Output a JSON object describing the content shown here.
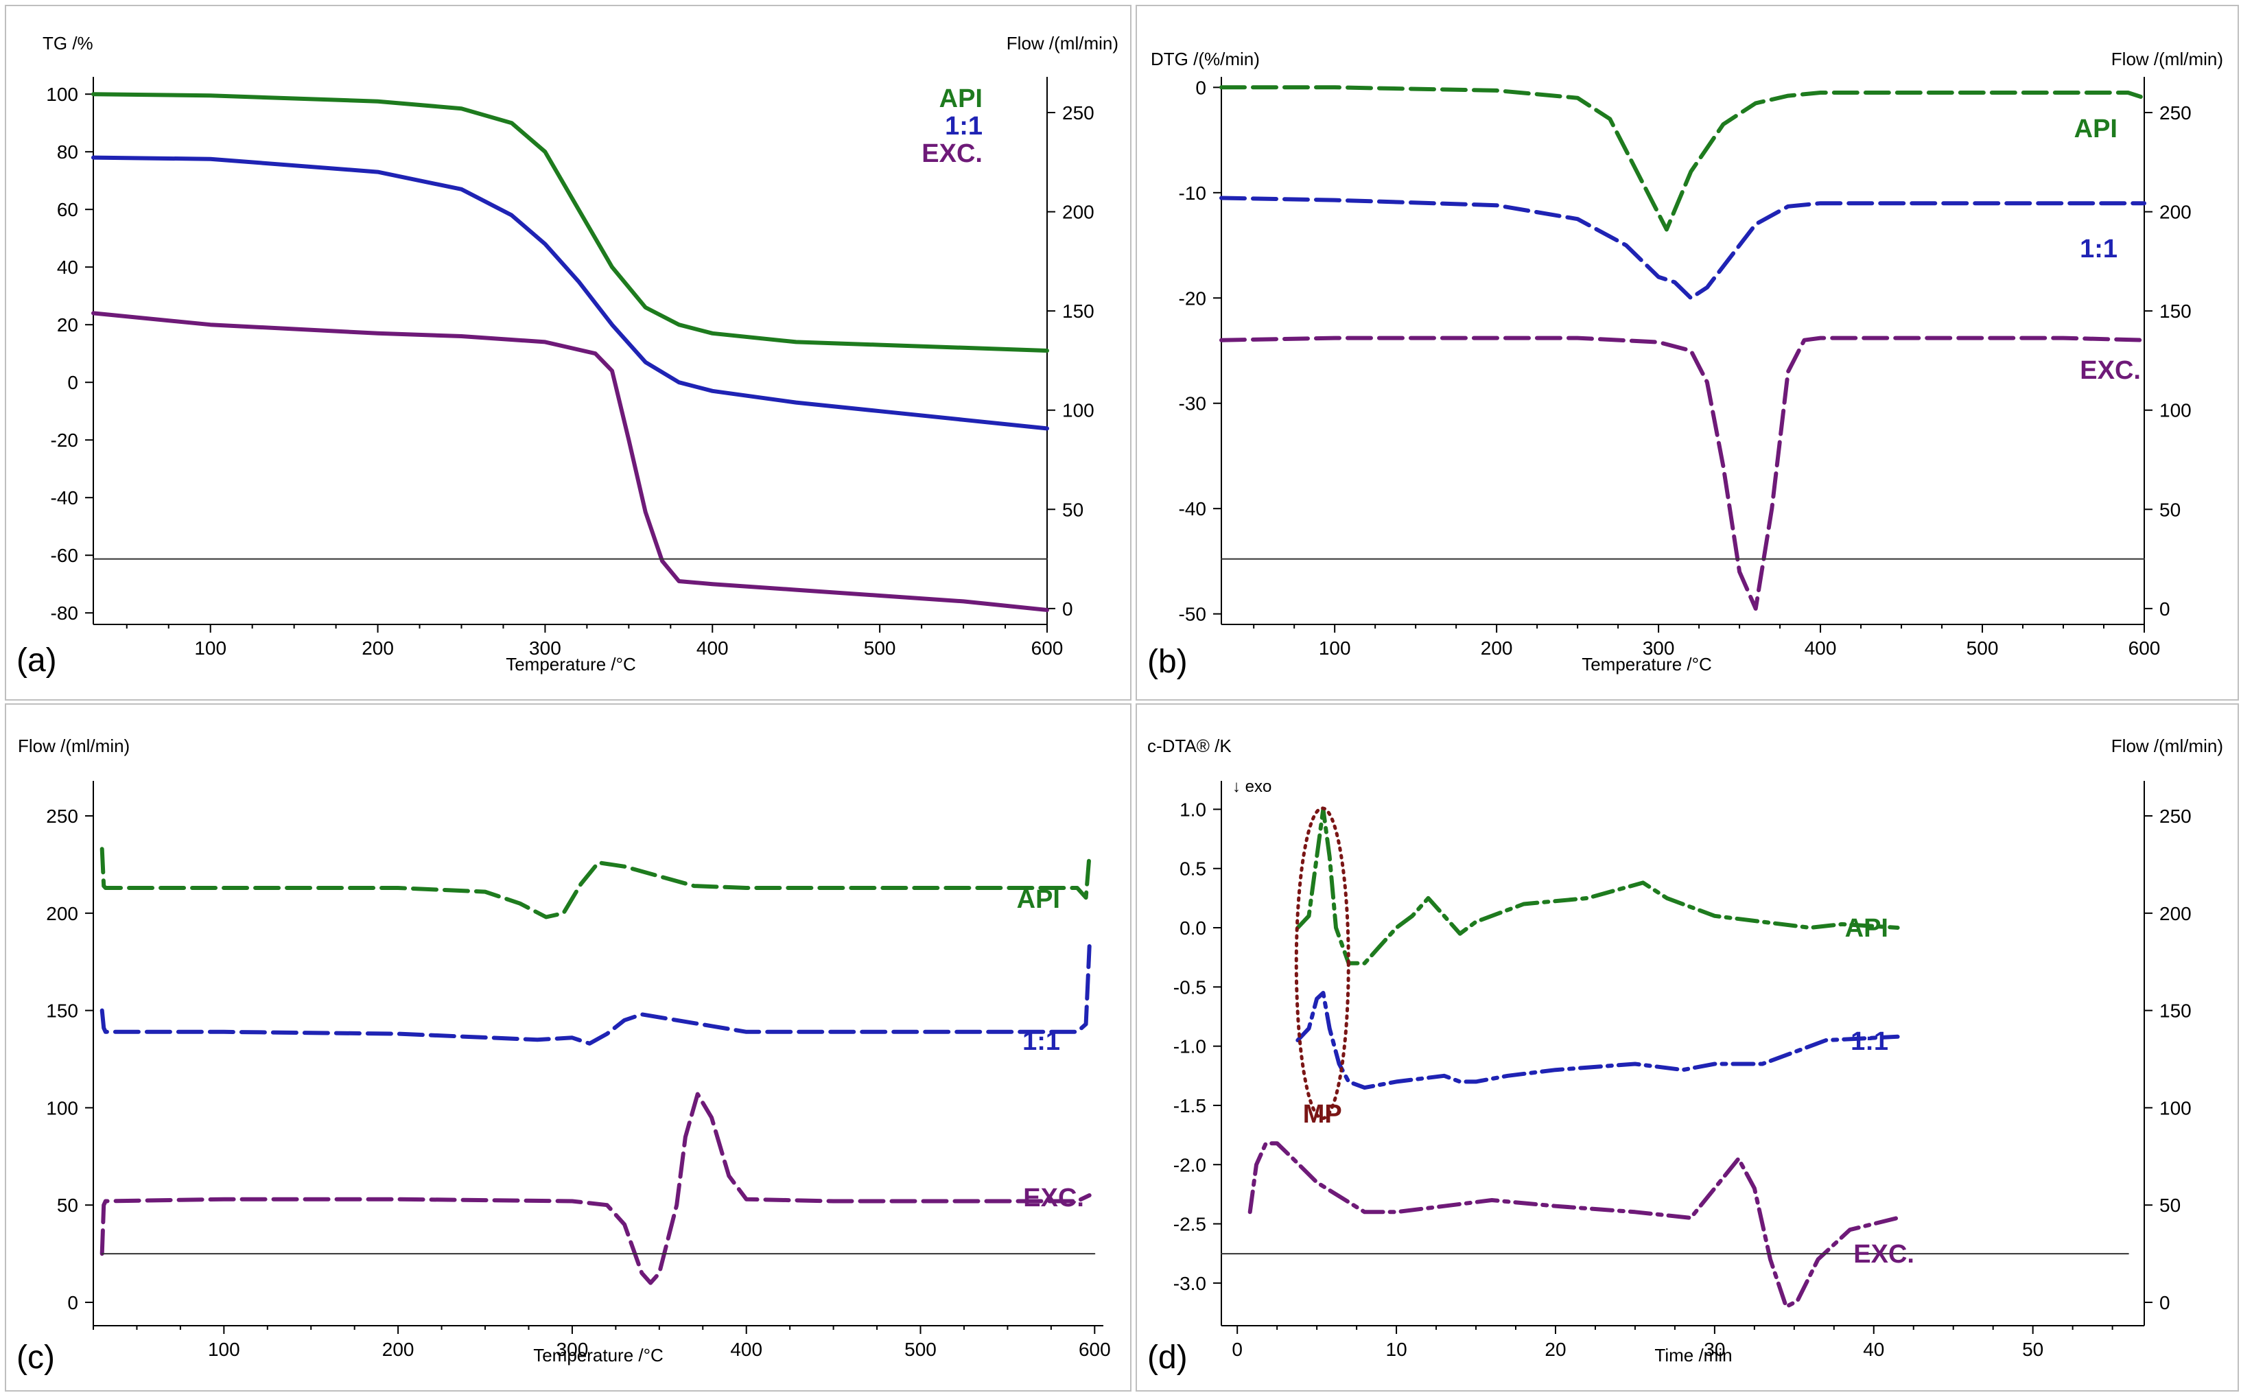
{
  "colors": {
    "api": "#1e7b1e",
    "mix": "#1f23b4",
    "exc": "#6e1a78",
    "axis": "#000000",
    "ref_line": "#333333",
    "mp": "#7a1515",
    "border": "#bfbfbf"
  },
  "chart_data": [
    {
      "type": "line",
      "panel": "(a)",
      "title": "",
      "xlabel": "Temperature /°C",
      "ylabel": "TG /%",
      "y2label": "Flow /(ml/min)",
      "xlim": [
        30,
        600
      ],
      "ylim": [
        -84,
        106
      ],
      "y2lim": [
        -8,
        268
      ],
      "xticks": [
        100,
        200,
        300,
        400,
        500,
        600
      ],
      "yticks": [
        100,
        80,
        60,
        40,
        20,
        0,
        -20,
        -40,
        -60,
        -80
      ],
      "y2ticks": [
        250,
        200,
        150,
        100,
        50,
        0
      ],
      "legend": [
        "API",
        "1:1",
        "EXC."
      ],
      "series": [
        {
          "name": "API",
          "style": "solid",
          "x": [
            30,
            100,
            200,
            250,
            280,
            300,
            320,
            340,
            360,
            380,
            400,
            450,
            500,
            550,
            600
          ],
          "y": [
            100,
            99.5,
            97.5,
            95,
            90,
            80,
            60,
            40,
            26,
            20,
            17,
            14,
            13,
            12,
            11
          ]
        },
        {
          "name": "1:1",
          "style": "solid",
          "x": [
            30,
            100,
            200,
            250,
            280,
            300,
            320,
            340,
            360,
            380,
            400,
            450,
            500,
            550,
            600
          ],
          "y": [
            78,
            77.5,
            73,
            67,
            58,
            48,
            35,
            20,
            7,
            0,
            -3,
            -7,
            -10,
            -13,
            -16
          ]
        },
        {
          "name": "EXC.",
          "style": "solid",
          "x": [
            30,
            100,
            200,
            250,
            300,
            330,
            340,
            350,
            360,
            370,
            380,
            400,
            450,
            500,
            550,
            600
          ],
          "y": [
            24,
            20,
            17,
            16,
            14,
            10,
            4,
            -20,
            -45,
            -62,
            -69,
            -70,
            -72,
            -74,
            -76,
            -79
          ]
        },
        {
          "name": "Flow",
          "style": "solid",
          "axis": "y2",
          "x": [
            30,
            600
          ],
          "y": [
            25,
            25
          ]
        }
      ]
    },
    {
      "type": "line",
      "panel": "(b)",
      "title": "",
      "xlabel": "Temperature /°C",
      "ylabel": "DTG /(%/min)",
      "y2label": "Flow /(ml/min)",
      "xlim": [
        30,
        600
      ],
      "ylim": [
        -51,
        1
      ],
      "y2lim": [
        -8,
        268
      ],
      "xticks": [
        100,
        200,
        300,
        400,
        500,
        600
      ],
      "yticks": [
        0,
        -10,
        -20,
        -30,
        -40,
        -50
      ],
      "y2ticks": [
        250,
        200,
        150,
        100,
        50,
        0
      ],
      "legend": [
        "API",
        "1:1",
        "EXC."
      ],
      "series": [
        {
          "name": "API",
          "style": "dashed",
          "x": [
            30,
            100,
            200,
            250,
            270,
            290,
            305,
            320,
            340,
            360,
            380,
            400,
            450,
            500,
            550,
            590,
            600
          ],
          "y": [
            0,
            0,
            -0.3,
            -1,
            -3,
            -9,
            -13.5,
            -8,
            -3.5,
            -1.5,
            -0.8,
            -0.5,
            -0.5,
            -0.5,
            -0.5,
            -0.5,
            -1
          ]
        },
        {
          "name": "1:1",
          "style": "dashed",
          "x": [
            30,
            100,
            200,
            250,
            280,
            300,
            310,
            320,
            330,
            340,
            360,
            380,
            400,
            450,
            500,
            550,
            600
          ],
          "y": [
            -10.5,
            -10.7,
            -11.2,
            -12.5,
            -15,
            -18,
            -18.5,
            -20,
            -19,
            -17,
            -13,
            -11.3,
            -11,
            -11,
            -11,
            -11,
            -11
          ]
        },
        {
          "name": "EXC.",
          "style": "dashed",
          "x": [
            30,
            100,
            200,
            250,
            300,
            320,
            330,
            340,
            350,
            360,
            370,
            380,
            390,
            400,
            450,
            500,
            550,
            600
          ],
          "y": [
            -24,
            -23.8,
            -23.8,
            -23.8,
            -24.2,
            -25,
            -28,
            -36,
            -46,
            -49.5,
            -40,
            -27,
            -24,
            -23.8,
            -23.8,
            -23.8,
            -23.8,
            -24
          ]
        },
        {
          "name": "Flow",
          "style": "solid",
          "axis": "y2",
          "x": [
            30,
            600
          ],
          "y": [
            25,
            25
          ]
        }
      ]
    },
    {
      "type": "line",
      "panel": "(c)",
      "title": "",
      "xlabel": "Temperature /°C",
      "ylabel": "Flow /(ml/min)",
      "xlim": [
        25,
        605
      ],
      "ylim": [
        -12,
        268
      ],
      "xticks": [
        100,
        200,
        300,
        400,
        500,
        600
      ],
      "yticks": [
        250,
        200,
        150,
        100,
        50,
        0
      ],
      "legend": [
        "API",
        "1:1",
        "EXC."
      ],
      "series": [
        {
          "name": "API",
          "style": "dashed",
          "x": [
            30,
            31,
            32,
            100,
            200,
            250,
            270,
            285,
            295,
            305,
            315,
            330,
            350,
            370,
            400,
            500,
            590,
            595,
            597
          ],
          "y": [
            233,
            214,
            213,
            213,
            213,
            211,
            205,
            198,
            200,
            215,
            226,
            224,
            219,
            214,
            213,
            213,
            213,
            208,
            230
          ]
        },
        {
          "name": "1:1",
          "style": "dashed",
          "x": [
            30,
            31,
            32,
            100,
            200,
            280,
            300,
            310,
            320,
            330,
            340,
            360,
            380,
            400,
            500,
            590,
            595,
            597
          ],
          "y": [
            150,
            141,
            139,
            139,
            138,
            135,
            136,
            133,
            138,
            145,
            148,
            145,
            142,
            139,
            139,
            139,
            143,
            183
          ]
        },
        {
          "name": "EXC.",
          "style": "dashed",
          "x": [
            30,
            31,
            32,
            100,
            200,
            300,
            320,
            330,
            340,
            345,
            350,
            360,
            365,
            372,
            380,
            390,
            400,
            450,
            500,
            590,
            597
          ],
          "y": [
            25,
            50,
            52,
            53,
            53,
            52,
            50,
            40,
            15,
            10,
            15,
            50,
            85,
            107,
            95,
            65,
            53,
            52,
            52,
            52,
            55
          ]
        },
        {
          "name": "Flow",
          "style": "solid",
          "x": [
            30,
            600
          ],
          "y": [
            25,
            25
          ]
        }
      ]
    },
    {
      "type": "line",
      "panel": "(d)",
      "title": "",
      "xlabel": "Time /min",
      "ylabel": "c-DTA® /K",
      "y2label": "Flow /(ml/min)",
      "xlim": [
        -1,
        57
      ],
      "ylim": [
        -3.36,
        1.24
      ],
      "y2lim": [
        -12,
        268
      ],
      "xticks": [
        0,
        10,
        20,
        30,
        40,
        50
      ],
      "yticks": [
        1.0,
        0.5,
        0.0,
        -0.5,
        -1.0,
        -1.5,
        -2.0,
        -2.5,
        -3.0
      ],
      "y2ticks": [
        250,
        200,
        150,
        100,
        50,
        0
      ],
      "legend": [
        "API",
        "1:1",
        "EXC."
      ],
      "annotation": {
        "text": "MP",
        "note": "↓ exo"
      },
      "series": [
        {
          "name": "API",
          "style": "dash-dot",
          "x": [
            3.8,
            4.5,
            5.0,
            5.4,
            5.8,
            6.2,
            7.0,
            8.0,
            9.0,
            10,
            11,
            12,
            13,
            14,
            15,
            18,
            22,
            25.5,
            27,
            30,
            33,
            36,
            38,
            41.5
          ],
          "y": [
            0,
            0.1,
            0.6,
            1.0,
            0.6,
            0,
            -0.3,
            -0.3,
            -0.15,
            0,
            0.1,
            0.25,
            0.1,
            -0.05,
            0.05,
            0.2,
            0.25,
            0.38,
            0.25,
            0.1,
            0.05,
            0,
            0.03,
            0
          ]
        },
        {
          "name": "1:1",
          "style": "dash-dot",
          "x": [
            3.8,
            4.5,
            5.0,
            5.4,
            5.8,
            6.4,
            7.0,
            8.0,
            10,
            13,
            14,
            15,
            17,
            20,
            25,
            28,
            30,
            33,
            35,
            37,
            41.5
          ],
          "y": [
            -0.95,
            -0.85,
            -0.6,
            -0.55,
            -0.85,
            -1.15,
            -1.3,
            -1.35,
            -1.3,
            -1.25,
            -1.3,
            -1.3,
            -1.25,
            -1.2,
            -1.15,
            -1.2,
            -1.15,
            -1.15,
            -1.05,
            -0.95,
            -0.92
          ]
        },
        {
          "name": "EXC.",
          "style": "dash-dot",
          "x": [
            0.8,
            1.2,
            1.8,
            2.5,
            3.5,
            5,
            8,
            10,
            13,
            16,
            20,
            25,
            28.5,
            30,
            31.5,
            32.5,
            33.5,
            34.5,
            35.2,
            36.5,
            38.5,
            41.5
          ],
          "y": [
            -2.4,
            -2.0,
            -1.82,
            -1.82,
            -1.95,
            -2.15,
            -2.4,
            -2.4,
            -2.35,
            -2.3,
            -2.35,
            -2.4,
            -2.45,
            -2.2,
            -1.95,
            -2.2,
            -2.8,
            -3.2,
            -3.15,
            -2.8,
            -2.55,
            -2.45
          ]
        },
        {
          "name": "Flow",
          "style": "solid",
          "axis": "y2",
          "x": [
            -1,
            56
          ],
          "y": [
            25,
            25
          ]
        }
      ]
    }
  ]
}
